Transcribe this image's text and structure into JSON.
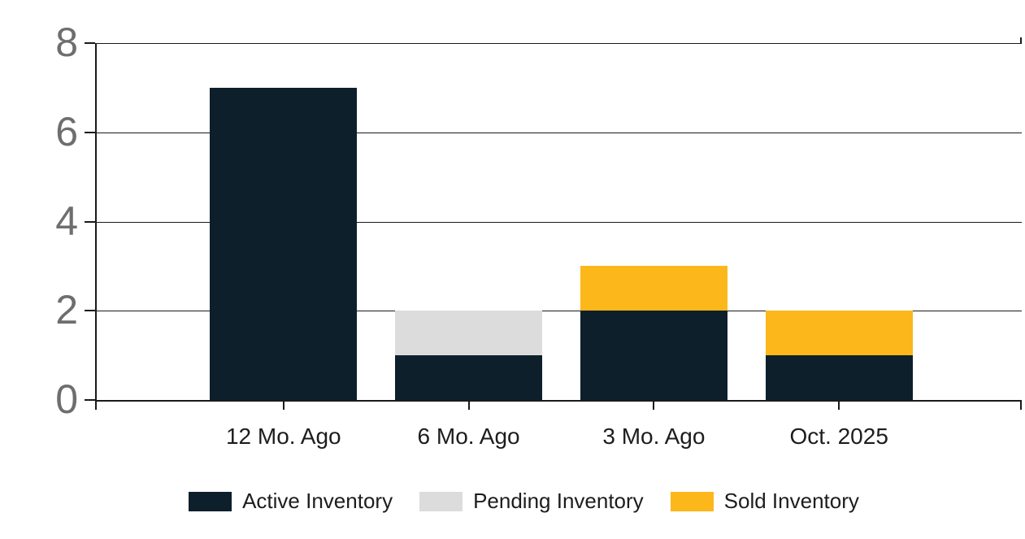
{
  "chart_data": {
    "type": "bar",
    "stacked": true,
    "title": "",
    "categories": [
      "12 Mo. Ago",
      "6 Mo. Ago",
      "3 Mo. Ago",
      "Oct. 2025"
    ],
    "series": [
      {
        "name": "Active Inventory",
        "color": "#0d1f2b",
        "values": [
          7,
          1,
          2,
          1
        ]
      },
      {
        "name": "Pending Inventory",
        "color": "#dcdcdc",
        "values": [
          0,
          1,
          0,
          0
        ]
      },
      {
        "name": "Sold Inventory",
        "color": "#fcb71b",
        "values": [
          0,
          0,
          1,
          1
        ]
      }
    ],
    "y_ticks": [
      0,
      2,
      4,
      6,
      8
    ],
    "ylim": [
      0,
      8
    ],
    "grid": true,
    "legend_position": "bottom"
  },
  "colors": {
    "background": "#ffffff",
    "axis": "#1a1a1a",
    "gridline": "#1a1a1a",
    "y_label": "#6e6e6e",
    "x_label": "#1d1d1d",
    "legend_label": "#1d1d1d"
  }
}
